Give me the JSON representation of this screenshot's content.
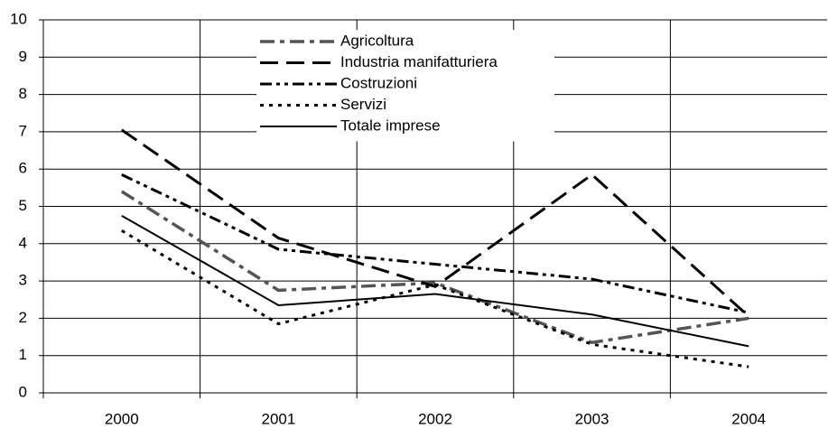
{
  "chart_data": {
    "type": "line",
    "categories": [
      "2000",
      "2001",
      "2002",
      "2003",
      "2004"
    ],
    "series": [
      {
        "name": "Agricoltura",
        "color": "#555555",
        "dash": "dash-dot",
        "values": [
          5.4,
          2.75,
          2.95,
          1.35,
          2.0
        ]
      },
      {
        "name": "Industria manifatturiera",
        "color": "#000000",
        "dash": "long-dash",
        "values": [
          7.05,
          4.15,
          2.85,
          5.85,
          2.05
        ]
      },
      {
        "name": "Costruzioni",
        "color": "#000000",
        "dash": "dash-dot-dot",
        "values": [
          5.85,
          3.85,
          3.45,
          3.05,
          2.15
        ]
      },
      {
        "name": "Servizi",
        "color": "#000000",
        "dash": "dot",
        "values": [
          4.35,
          1.85,
          2.9,
          1.3,
          0.7
        ]
      },
      {
        "name": "Totale imprese",
        "color": "#000000",
        "dash": "solid",
        "values": [
          4.75,
          2.35,
          2.65,
          2.1,
          1.25
        ]
      }
    ],
    "ylim": [
      0,
      10
    ],
    "yticks": [
      0,
      1,
      2,
      3,
      4,
      5,
      6,
      7,
      8,
      9,
      10
    ],
    "grid": true,
    "legend": "top"
  }
}
